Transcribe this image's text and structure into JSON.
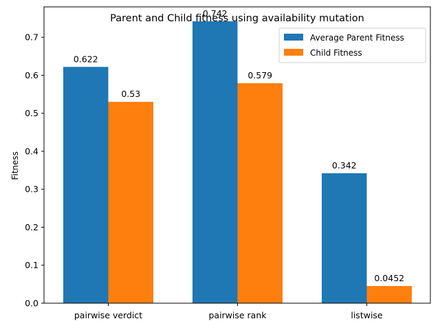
{
  "chart_data": {
    "type": "bar",
    "title": "Parent and Child fitness using availability mutation",
    "xlabel": "",
    "ylabel": "Fitness",
    "ylim": [
      0,
      0.78
    ],
    "yticks": [
      "0.0",
      "0.1",
      "0.2",
      "0.3",
      "0.4",
      "0.5",
      "0.6",
      "0.7"
    ],
    "categories": [
      "pairwise verdict",
      "pairwise rank",
      "listwise"
    ],
    "series": [
      {
        "name": "Average Parent Fitness",
        "color": "#1f77b4",
        "values": [
          0.622,
          0.742,
          0.342
        ],
        "labels": [
          "0.622",
          "0.742",
          "0.342"
        ]
      },
      {
        "name": "Child Fitness",
        "color": "#ff7f0e",
        "values": [
          0.53,
          0.579,
          0.0452
        ],
        "labels": [
          "0.53",
          "0.579",
          "0.0452"
        ]
      }
    ],
    "grid": false,
    "legend_position": "top-right"
  }
}
